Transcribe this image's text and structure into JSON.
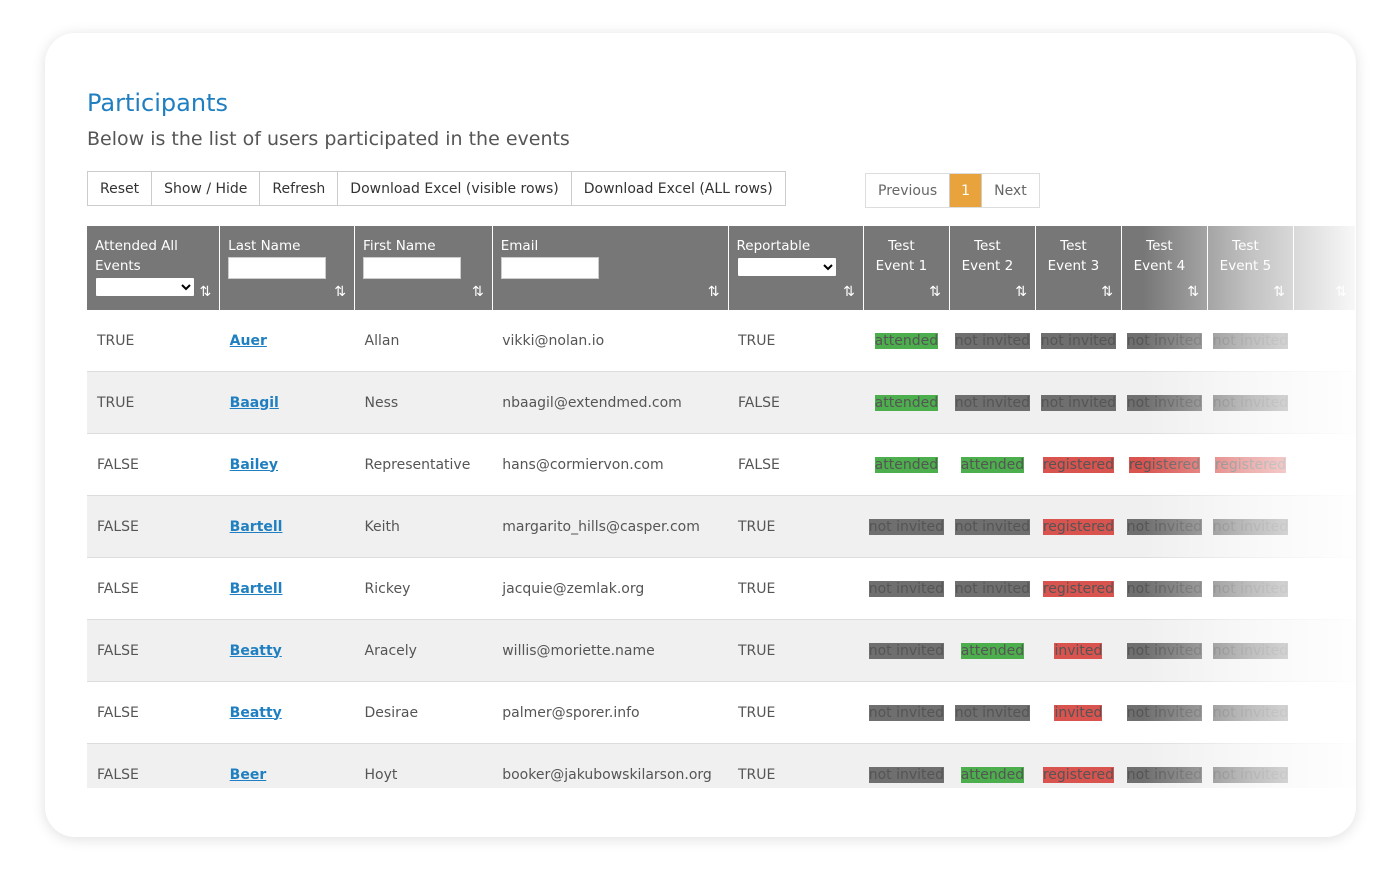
{
  "header": {
    "title": "Participants",
    "subtitle": "Below is the list of users participated in the events"
  },
  "toolbar": [
    "Reset",
    "Show / Hide",
    "Refresh",
    "Download Excel (visible rows)",
    "Download Excel (ALL rows)"
  ],
  "pagination": {
    "previous": "Previous",
    "current": "1",
    "next": "Next"
  },
  "table": {
    "columns": [
      "Attended All Events",
      "Last Name",
      "First Name",
      "Email",
      "Reportable",
      "Test Event 1",
      "Test Event 2",
      "Test Event 3",
      "Test Event 4",
      "Test Event 5"
    ],
    "status_colors": {
      "attended": "#4cae4c",
      "not invited": "#6f6f6f",
      "registered": "#d9534f",
      "invited": "#d9534f"
    },
    "rows": [
      [
        "TRUE",
        "Auer",
        "Allan",
        "vikki@nolan.io",
        "TRUE",
        "attended",
        "not invited",
        "not invited",
        "not invited",
        "not invited"
      ],
      [
        "TRUE",
        "Baagil",
        "Ness",
        "nbaagil@extendmed.com",
        "FALSE",
        "attended",
        "not invited",
        "not invited",
        "not invited",
        "not invited"
      ],
      [
        "FALSE",
        "Bailey",
        "Representative",
        "hans@cormiervon.com",
        "FALSE",
        "attended",
        "attended",
        "registered",
        "registered",
        "registered"
      ],
      [
        "FALSE",
        "Bartell",
        "Keith",
        "margarito_hills@casper.com",
        "TRUE",
        "not invited",
        "not invited",
        "registered",
        "not invited",
        "not invited"
      ],
      [
        "FALSE",
        "Bartell",
        "Rickey",
        "jacquie@zemlak.org",
        "TRUE",
        "not invited",
        "not invited",
        "registered",
        "not invited",
        "not invited"
      ],
      [
        "FALSE",
        "Beatty",
        "Aracely",
        "willis@moriette.name",
        "TRUE",
        "not invited",
        "attended",
        "invited",
        "not invited",
        "not invited"
      ],
      [
        "FALSE",
        "Beatty",
        "Desirae",
        "palmer@sporer.info",
        "TRUE",
        "not invited",
        "not invited",
        "invited",
        "not invited",
        "not invited"
      ],
      [
        "FALSE",
        "Beer",
        "Hoyt",
        "booker@jakubowskilarson.org",
        "TRUE",
        "not invited",
        "attended",
        "registered",
        "not invited",
        "not invited"
      ]
    ]
  }
}
